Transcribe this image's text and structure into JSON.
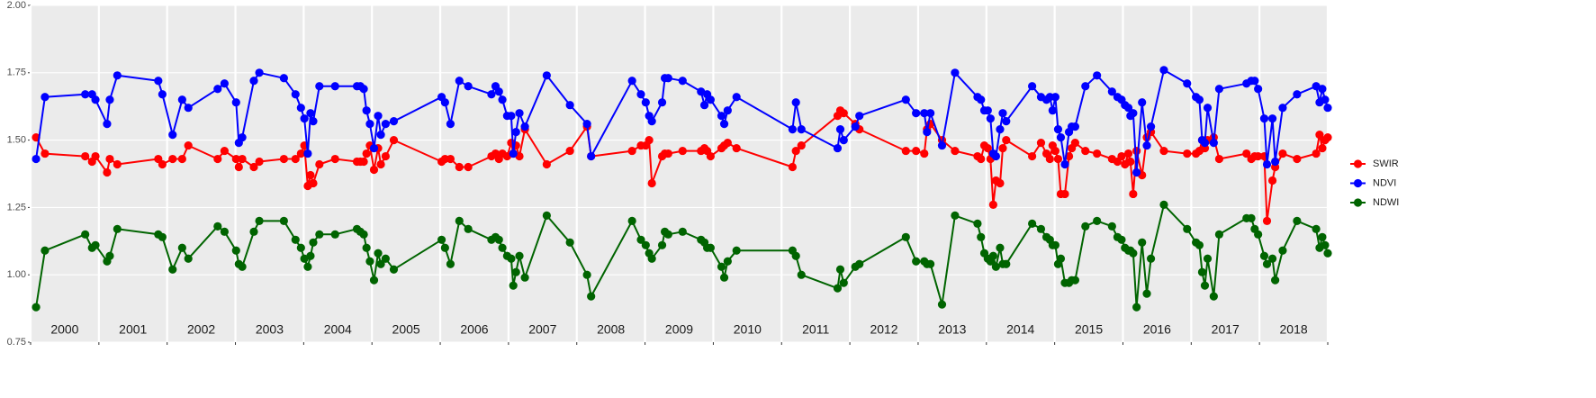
{
  "chart_data": {
    "type": "line",
    "categories": [
      "2000",
      "2001",
      "2002",
      "2003",
      "2004",
      "2005",
      "2006",
      "2007",
      "2008",
      "2009",
      "2010",
      "2011",
      "2012",
      "2013",
      "2014",
      "2015",
      "2016",
      "2017",
      "2018"
    ],
    "xlim": [
      2000,
      2019
    ],
    "xticks": [
      2000,
      2001,
      2002,
      2003,
      2004,
      2005,
      2006,
      2007,
      2008,
      2009,
      2010,
      2011,
      2012,
      2013,
      2014,
      2015,
      2016,
      2017,
      2018,
      2019
    ],
    "ylim": [
      0.75,
      2.0
    ],
    "yticks": [
      0.75,
      {
        "value": 1,
        "label": "1.00"
      },
      1.25,
      {
        "value": 1.5,
        "label": "1.50"
      },
      1.75,
      {
        "value": 2,
        "label": "2.00"
      }
    ],
    "grid": true,
    "legend": "right",
    "x": [
      2000.08,
      2000.21,
      2000.8,
      2000.9,
      2000.95,
      2001.12,
      2001.16,
      2001.27,
      2001.87,
      2001.93,
      2002.08,
      2002.22,
      2002.31,
      2002.74,
      2002.84,
      2003.01,
      2003.05,
      2003.1,
      2003.27,
      2003.35,
      2003.71,
      2003.88,
      2003.96,
      2004.01,
      2004.06,
      2004.1,
      2004.14,
      2004.23,
      2004.46,
      2004.78,
      2004.83,
      2004.88,
      2004.92,
      2004.97,
      2005.03,
      2005.09,
      2005.13,
      2005.2,
      2005.32,
      2006.02,
      2006.07,
      2006.15,
      2006.28,
      2006.41,
      2006.75,
      2006.81,
      2006.86,
      2006.91,
      2006.98,
      2007.04,
      2007.07,
      2007.11,
      2007.16,
      2007.24,
      2007.56,
      2007.9,
      2008.15,
      2008.21,
      2008.81,
      2008.94,
      2009.01,
      2009.06,
      2009.1,
      2009.25,
      2009.29,
      2009.34,
      2009.55,
      2009.82,
      2009.87,
      2009.91,
      2009.96,
      2010.12,
      2010.16,
      2010.21,
      2010.34,
      2011.16,
      2011.21,
      2011.29,
      2011.82,
      2011.86,
      2011.91,
      2012.08,
      2012.14,
      2012.82,
      2012.97,
      2013.09,
      2013.13,
      2013.18,
      2013.35,
      2013.54,
      2013.87,
      2013.92,
      2013.97,
      2014.02,
      2014.06,
      2014.1,
      2014.14,
      2014.2,
      2014.24,
      2014.29,
      2014.67,
      2014.8,
      2014.88,
      2014.93,
      2014.97,
      2015.01,
      2015.05,
      2015.09,
      2015.15,
      2015.21,
      2015.25,
      2015.3,
      2015.45,
      2015.62,
      2015.84,
      2015.92,
      2015.98,
      2016.03,
      2016.08,
      2016.11,
      2016.15,
      2016.2,
      2016.28,
      2016.35,
      2016.41,
      2016.6,
      2016.94,
      2017.07,
      2017.12,
      2017.16,
      2017.2,
      2017.24,
      2017.33,
      2017.41,
      2017.81,
      2017.88,
      2017.93,
      2017.98,
      2018.07,
      2018.11,
      2018.19,
      2018.23,
      2018.34,
      2018.55,
      2018.83,
      2018.88,
      2018.92,
      2018.96,
      2019.0
    ],
    "series": [
      {
        "name": "SWIR",
        "color": "#ff0000",
        "values": [
          1.51,
          1.45,
          1.44,
          1.42,
          1.44,
          1.38,
          1.43,
          1.41,
          1.43,
          1.41,
          1.43,
          1.43,
          1.48,
          1.43,
          1.46,
          1.43,
          1.4,
          1.43,
          1.4,
          1.42,
          1.43,
          1.43,
          1.45,
          1.48,
          1.33,
          1.37,
          1.34,
          1.41,
          1.43,
          1.42,
          1.42,
          1.42,
          1.45,
          1.48,
          1.39,
          1.47,
          1.41,
          1.44,
          1.5,
          1.42,
          1.43,
          1.43,
          1.4,
          1.4,
          1.44,
          1.45,
          1.43,
          1.45,
          1.44,
          1.49,
          1.45,
          1.48,
          1.44,
          1.54,
          1.41,
          1.46,
          1.55,
          1.44,
          1.46,
          1.48,
          1.48,
          1.5,
          1.34,
          1.44,
          1.45,
          1.45,
          1.46,
          1.46,
          1.47,
          1.46,
          1.44,
          1.47,
          1.48,
          1.49,
          1.47,
          1.4,
          1.46,
          1.48,
          1.59,
          1.61,
          1.6,
          1.56,
          1.54,
          1.46,
          1.46,
          1.45,
          1.54,
          1.56,
          1.5,
          1.46,
          1.44,
          1.43,
          1.48,
          1.47,
          1.43,
          1.26,
          1.35,
          1.34,
          1.47,
          1.5,
          1.44,
          1.49,
          1.45,
          1.43,
          1.48,
          1.46,
          1.43,
          1.3,
          1.3,
          1.44,
          1.47,
          1.49,
          1.46,
          1.45,
          1.43,
          1.42,
          1.44,
          1.41,
          1.45,
          1.42,
          1.3,
          1.46,
          1.37,
          1.51,
          1.53,
          1.46,
          1.45,
          1.45,
          1.46,
          1.5,
          1.47,
          1.5,
          1.51,
          1.43,
          1.45,
          1.43,
          1.44,
          1.44,
          1.44,
          1.2,
          1.35,
          1.4,
          1.45,
          1.43,
          1.45,
          1.52,
          1.47,
          1.5,
          1.51
        ]
      },
      {
        "name": "NDVI",
        "color": "#0000ff",
        "values": [
          1.43,
          1.66,
          1.67,
          1.67,
          1.65,
          1.56,
          1.65,
          1.74,
          1.72,
          1.67,
          1.52,
          1.65,
          1.62,
          1.69,
          1.71,
          1.64,
          1.49,
          1.51,
          1.72,
          1.75,
          1.73,
          1.67,
          1.62,
          1.58,
          1.45,
          1.6,
          1.57,
          1.7,
          1.7,
          1.7,
          1.7,
          1.69,
          1.61,
          1.56,
          1.47,
          1.59,
          1.52,
          1.56,
          1.57,
          1.66,
          1.64,
          1.56,
          1.72,
          1.7,
          1.67,
          1.7,
          1.68,
          1.65,
          1.59,
          1.59,
          1.45,
          1.53,
          1.6,
          1.55,
          1.74,
          1.63,
          1.56,
          1.44,
          1.72,
          1.67,
          1.64,
          1.59,
          1.57,
          1.64,
          1.73,
          1.73,
          1.72,
          1.68,
          1.63,
          1.67,
          1.65,
          1.59,
          1.56,
          1.61,
          1.66,
          1.54,
          1.64,
          1.54,
          1.47,
          1.54,
          1.5,
          1.55,
          1.59,
          1.65,
          1.6,
          1.6,
          1.53,
          1.6,
          1.48,
          1.75,
          1.66,
          1.65,
          1.61,
          1.61,
          1.58,
          1.45,
          1.44,
          1.54,
          1.6,
          1.57,
          1.7,
          1.66,
          1.65,
          1.66,
          1.61,
          1.66,
          1.54,
          1.51,
          1.41,
          1.53,
          1.55,
          1.55,
          1.7,
          1.74,
          1.68,
          1.66,
          1.65,
          1.63,
          1.62,
          1.59,
          1.6,
          1.38,
          1.64,
          1.48,
          1.55,
          1.76,
          1.71,
          1.66,
          1.65,
          1.5,
          1.49,
          1.62,
          1.49,
          1.69,
          1.71,
          1.72,
          1.72,
          1.69,
          1.58,
          1.41,
          1.58,
          1.42,
          1.62,
          1.67,
          1.7,
          1.64,
          1.69,
          1.65,
          1.62
        ]
      },
      {
        "name": "NDWI",
        "color": "#006400",
        "values": [
          0.88,
          1.09,
          1.15,
          1.1,
          1.11,
          1.05,
          1.07,
          1.17,
          1.15,
          1.14,
          1.02,
          1.1,
          1.06,
          1.18,
          1.16,
          1.09,
          1.04,
          1.03,
          1.16,
          1.2,
          1.2,
          1.13,
          1.1,
          1.06,
          1.03,
          1.07,
          1.12,
          1.15,
          1.15,
          1.17,
          1.16,
          1.15,
          1.1,
          1.05,
          0.98,
          1.08,
          1.04,
          1.06,
          1.02,
          1.13,
          1.1,
          1.04,
          1.2,
          1.17,
          1.13,
          1.14,
          1.13,
          1.1,
          1.07,
          1.06,
          0.96,
          1.01,
          1.07,
          0.99,
          1.22,
          1.12,
          1.0,
          0.92,
          1.2,
          1.13,
          1.11,
          1.08,
          1.06,
          1.11,
          1.16,
          1.15,
          1.16,
          1.13,
          1.12,
          1.1,
          1.1,
          1.03,
          0.99,
          1.05,
          1.09,
          1.09,
          1.07,
          1.0,
          0.95,
          1.02,
          0.97,
          1.03,
          1.04,
          1.14,
          1.05,
          1.05,
          1.04,
          1.04,
          0.89,
          1.22,
          1.19,
          1.14,
          1.08,
          1.06,
          1.05,
          1.07,
          1.03,
          1.1,
          1.04,
          1.04,
          1.19,
          1.17,
          1.14,
          1.13,
          1.11,
          1.11,
          1.04,
          1.06,
          0.97,
          0.97,
          0.98,
          0.98,
          1.18,
          1.2,
          1.18,
          1.14,
          1.13,
          1.1,
          1.09,
          1.09,
          1.08,
          0.88,
          1.12,
          0.93,
          1.06,
          1.26,
          1.17,
          1.12,
          1.11,
          1.01,
          0.96,
          1.06,
          0.92,
          1.15,
          1.21,
          1.21,
          1.17,
          1.15,
          1.07,
          1.04,
          1.06,
          0.98,
          1.09,
          1.2,
          1.17,
          1.1,
          1.14,
          1.11,
          1.08
        ]
      }
    ]
  }
}
